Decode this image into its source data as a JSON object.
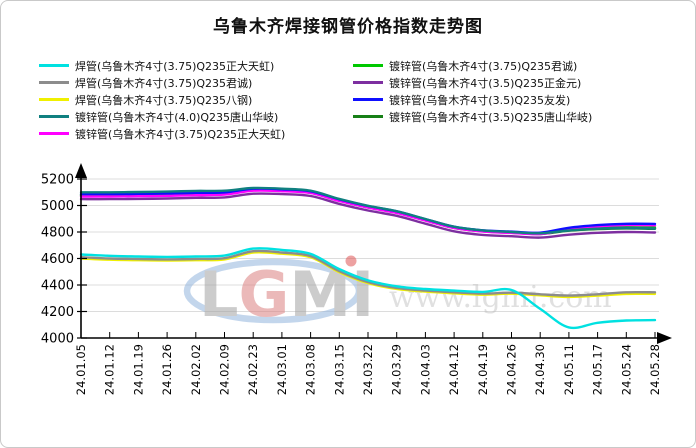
{
  "title": "乌鲁木齐焊接钢管价格指数走势图",
  "watermark": {
    "logo_letters": [
      "L",
      "G",
      "M",
      "I"
    ],
    "url_text": "www.lgmi.com"
  },
  "axis_colors": {
    "grid": "#dcdcdc",
    "axis": "#000000",
    "watermark_ellipse": "#93b5de",
    "watermark_gray": "#a3a3a3",
    "watermark_red": "#dc8080",
    "url_gray": "#bdbdbd"
  },
  "chart_data": {
    "type": "line",
    "title": "乌鲁木齐焊接钢管价格指数走势图",
    "xlabel": "",
    "ylabel": "",
    "ylim": [
      4000,
      5200
    ],
    "yticks": [
      4000,
      4200,
      4400,
      4600,
      4800,
      5000,
      5200
    ],
    "grid": true,
    "legend_position": "top",
    "categories": [
      "24.01.05",
      "24.01.12",
      "24.01.19",
      "24.01.26",
      "24.02.02",
      "24.02.09",
      "24.02.23",
      "24.03.01",
      "24.03.08",
      "24.03.15",
      "24.03.22",
      "24.03.29",
      "24.04.03",
      "24.04.12",
      "24.04.19",
      "24.04.26",
      "24.04.30",
      "24.05.11",
      "24.05.17",
      "24.05.24",
      "24.05.28"
    ],
    "series": [
      {
        "name": "焊管(乌鲁木齐4寸(3.75)Q235正大天虹)",
        "color": "#00E1E1",
        "values": [
          4630,
          4620,
          4615,
          4612,
          4615,
          4622,
          4675,
          4665,
          4635,
          4520,
          4435,
          4390,
          4370,
          4358,
          4348,
          4362,
          4220,
          4080,
          4115,
          4132,
          4135
        ]
      },
      {
        "name": "焊管(乌鲁木齐4寸(3.75)Q235君诚)",
        "color": "#8c8c8c",
        "values": [
          4610,
          4600,
          4596,
          4593,
          4596,
          4602,
          4655,
          4645,
          4618,
          4505,
          4422,
          4378,
          4358,
          4345,
          4335,
          4342,
          4330,
          4320,
          4330,
          4345,
          4345
        ]
      },
      {
        "name": "焊管(乌鲁木齐4寸(3.75)Q235八钢)",
        "color": "#F0F000",
        "values": [
          4600,
          4591,
          4587,
          4585,
          4587,
          4593,
          4645,
          4636,
          4610,
          4497,
          4414,
          4370,
          4350,
          4337,
          4327,
          4334,
          4322,
          4310,
          4320,
          4333,
          4333
        ]
      },
      {
        "name": "镀锌管(乌鲁木齐4寸(4.0)Q235唐山华岐)",
        "color": "#108080",
        "values": [
          5100,
          5100,
          5102,
          5105,
          5110,
          5112,
          5132,
          5127,
          5112,
          5050,
          4998,
          4957,
          4898,
          4840,
          4812,
          4800,
          4790,
          4812,
          4825,
          4830,
          4826
        ]
      },
      {
        "name": "镀锌管(乌鲁木齐4寸(3.75)Q235正大天虹)",
        "color": "#FF00FF",
        "values": [
          5068,
          5068,
          5070,
          5073,
          5078,
          5082,
          5112,
          5108,
          5094,
          5034,
          4984,
          4944,
          4886,
          4830,
          4804,
          4793,
          4784,
          4820,
          4842,
          4852,
          4850
        ]
      },
      {
        "name": "镀锌管(乌鲁木齐4寸(3.75)Q235君诚)",
        "color": "#00C800",
        "values": [
          5080,
          5080,
          5082,
          5085,
          5090,
          5093,
          5121,
          5116,
          5101,
          5041,
          4990,
          4950,
          4891,
          4834,
          4807,
          4797,
          4788,
          4816,
          4830,
          4836,
          4833
        ]
      },
      {
        "name": "镀锌管(乌鲁木齐4寸(3.5)Q235正金元)",
        "color": "#7D2FA0",
        "values": [
          5048,
          5048,
          5050,
          5053,
          5058,
          5061,
          5089,
          5086,
          5072,
          5012,
          4962,
          4922,
          4863,
          4805,
          4778,
          4768,
          4758,
          4780,
          4794,
          4800,
          4796
        ]
      },
      {
        "name": "镀锌管(乌鲁木齐4寸(3.5)Q235友发)",
        "color": "#0F0FFF",
        "values": [
          5086,
          5086,
          5088,
          5091,
          5096,
          5099,
          5127,
          5122,
          5107,
          5047,
          4996,
          4956,
          4897,
          4840,
          4813,
          4803,
          4795,
          4832,
          4852,
          4862,
          4861
        ]
      },
      {
        "name": "镀锌管(乌鲁木齐4寸(3.5)Q235唐山华岐)",
        "color": "#178017",
        "values": [
          5074,
          5074,
          5076,
          5079,
          5084,
          5087,
          5116,
          5111,
          5096,
          5036,
          4986,
          4946,
          4888,
          4831,
          4805,
          4794,
          4785,
          4810,
          4822,
          4827,
          4824
        ]
      }
    ],
    "legend_columns": [
      [
        0,
        1,
        2,
        3,
        4
      ],
      [
        5,
        6,
        7,
        8
      ]
    ],
    "draw_order": [
      2,
      1,
      8,
      6,
      5,
      4,
      7,
      3,
      0
    ]
  }
}
